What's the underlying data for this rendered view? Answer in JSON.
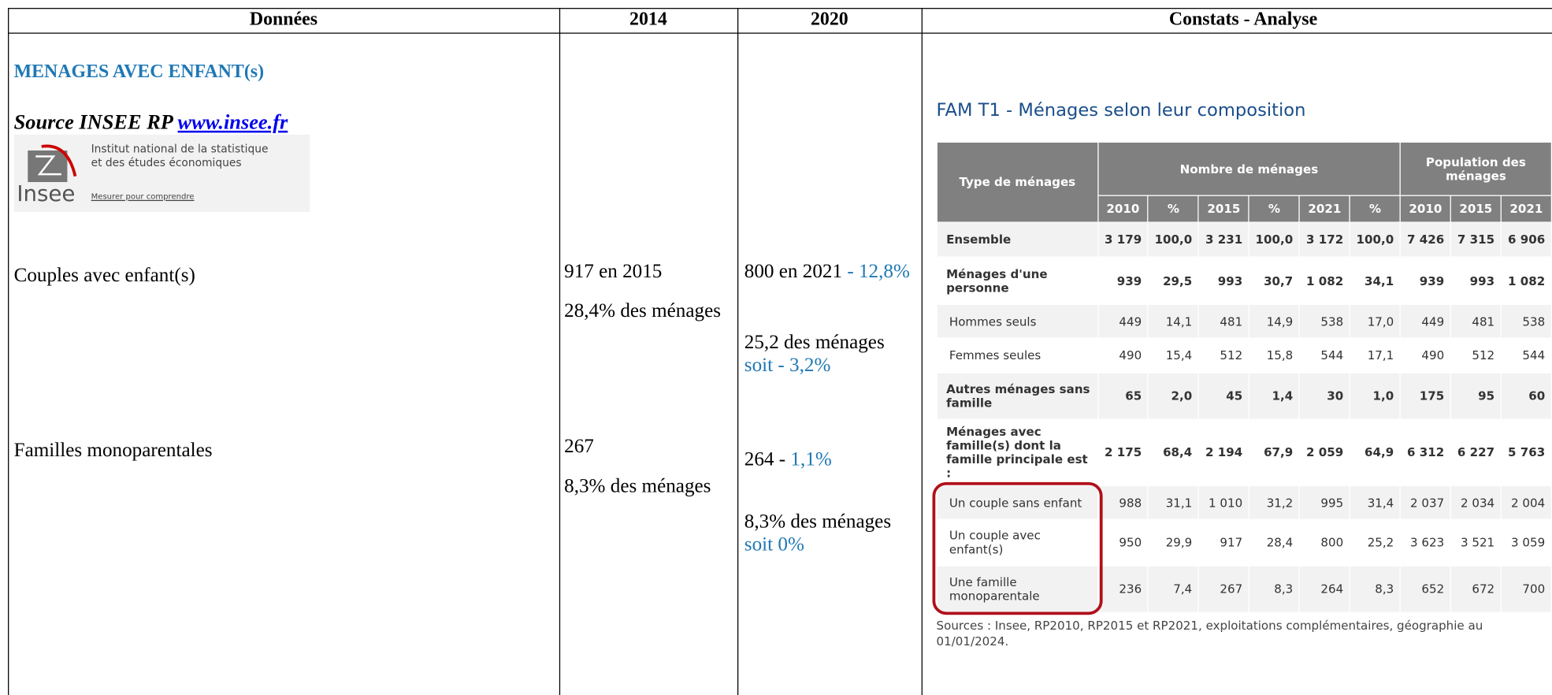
{
  "header": {
    "columns": [
      "Données",
      "2014",
      "2020",
      "Constats - Analyse"
    ]
  },
  "section_title": "MENAGES AVEC ENFANT(s)",
  "source": {
    "text": "Source INSEE RP",
    "link": "www.insee.fr"
  },
  "logo": {
    "line1": "Institut national de la statistique",
    "line2": "et des études économiques",
    "name": "Insee",
    "tagline": "Mesurer pour comprendre"
  },
  "rows": [
    {
      "label": "Couples avec enfant(s)",
      "col_2014": {
        "count": "917 en 2015",
        "share": "28,4% des ménages"
      },
      "col_2020": {
        "count": "800 en 2021",
        "count_change": "- 12,8%",
        "share": "25,2 des ménages",
        "share_change": "soit - 3,2%"
      }
    },
    {
      "label": "Familles monoparentales",
      "col_2014": {
        "count": "267",
        "share": "8,3% des ménages"
      },
      "col_2020": {
        "count": "264 -",
        "count_change": "1,1%",
        "share": "8,3% des ménages",
        "share_change": "soit 0%"
      }
    }
  ],
  "insee_table": {
    "title": "FAM T1 - Ménages selon leur composition",
    "group_headers": [
      "Type de ménages",
      "Nombre de ménages",
      "Population des ménages"
    ],
    "year_headers": [
      "2010",
      "%",
      "2015",
      "%",
      "2021",
      "%",
      "2010",
      "2015",
      "2021"
    ],
    "rows": [
      {
        "label": "Ensemble",
        "bold": true,
        "values": [
          "3 179",
          "100,0",
          "3 231",
          "100,0",
          "3 172",
          "100,0",
          "7 426",
          "7 315",
          "6 906"
        ]
      },
      {
        "label": "Ménages d'une personne",
        "bold": true,
        "values": [
          "939",
          "29,5",
          "993",
          "30,7",
          "1 082",
          "34,1",
          "939",
          "993",
          "1 082"
        ]
      },
      {
        "label": "Hommes seuls",
        "bold": false,
        "values": [
          "449",
          "14,1",
          "481",
          "14,9",
          "538",
          "17,0",
          "449",
          "481",
          "538"
        ]
      },
      {
        "label": "Femmes seules",
        "bold": false,
        "values": [
          "490",
          "15,4",
          "512",
          "15,8",
          "544",
          "17,1",
          "490",
          "512",
          "544"
        ]
      },
      {
        "label": "Autres ménages sans famille",
        "bold": true,
        "values": [
          "65",
          "2,0",
          "45",
          "1,4",
          "30",
          "1,0",
          "175",
          "95",
          "60"
        ]
      },
      {
        "label": "Ménages avec famille(s) dont la famille principale est :",
        "bold": true,
        "values": [
          "2 175",
          "68,4",
          "2 194",
          "67,9",
          "2 059",
          "64,9",
          "6 312",
          "6 227",
          "5 763"
        ]
      },
      {
        "label": "Un couple sans enfant",
        "bold": false,
        "values": [
          "988",
          "31,1",
          "1 010",
          "31,2",
          "995",
          "31,4",
          "2 037",
          "2 034",
          "2 004"
        ]
      },
      {
        "label": "Un couple avec enfant(s)",
        "bold": false,
        "values": [
          "950",
          "29,9",
          "917",
          "28,4",
          "800",
          "25,2",
          "3 623",
          "3 521",
          "3 059"
        ]
      },
      {
        "label": "Une famille monoparentale",
        "bold": false,
        "values": [
          "236",
          "7,4",
          "267",
          "8,3",
          "264",
          "8,3",
          "652",
          "672",
          "700"
        ]
      }
    ],
    "sources": "Sources : Insee, RP2010, RP2015 et RP2021, exploitations complémentaires, géographie au 01/01/2024."
  }
}
